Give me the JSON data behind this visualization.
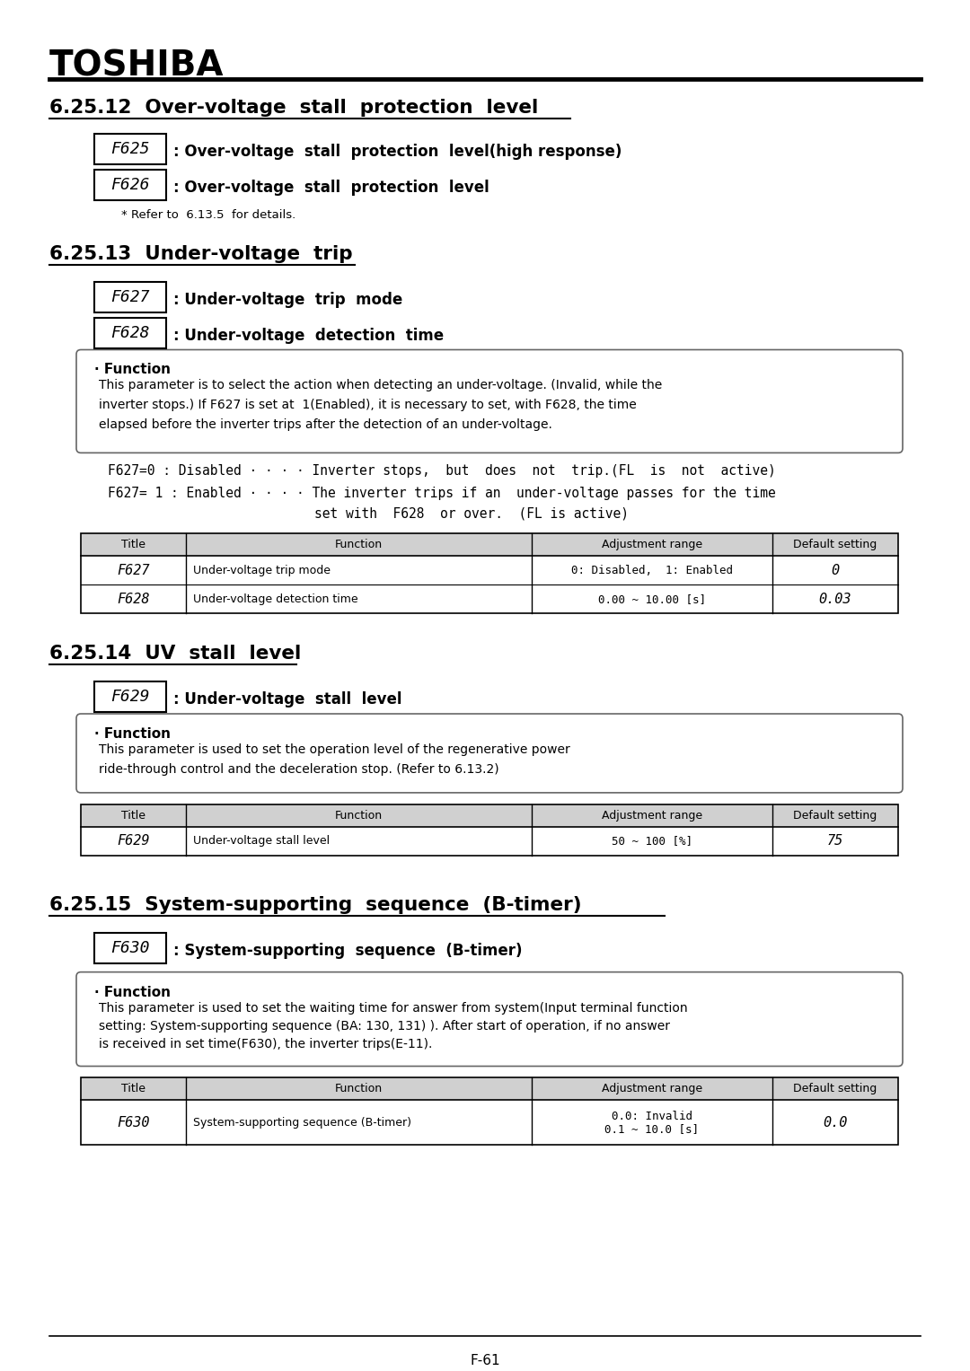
{
  "bg_color": "#ffffff",
  "text_color": "#000000",
  "page_number": "F-61",
  "toshiba_title": "TOSHIBA",
  "sections": [
    {
      "number": "6.25.12",
      "title": "Over-voltage  stall  protection  level",
      "params": [
        {
          "code": "F625",
          "desc": ": Over-voltage  stall  protection  level(high response)"
        },
        {
          "code": "F626",
          "desc": ": Over-voltage  stall  protection  level"
        }
      ],
      "note": "* Refer to 6.13.5  for details.",
      "function_box": null,
      "desc_lines": [],
      "table": null
    },
    {
      "number": "6.25.13",
      "title": "Under-voltage  trip",
      "params": [
        {
          "code": "F627",
          "desc": ": Under-voltage  trip  mode"
        },
        {
          "code": "F628",
          "desc": ": Under-voltage  detection  time"
        }
      ],
      "note": null,
      "function_box": {
        "title": "· Function",
        "lines": [
          "This parameter is to select the action when detecting an under-voltage. (Invalid, while the",
          "inverter stops.) If F627 is set at  1(Enabled), it is necessary to set, with F628, the time",
          "elapsed before the inverter trips after the detection of an under-voltage."
        ]
      },
      "desc_lines": [
        "F627=0 : Disabled · · · · Inverter stops,  but  does  not  trip.(FL  is  not  active)",
        "F627= 1 : Enabled · · · · The inverter trips if an  under-voltage passes for the time",
        "                         set with  F628  or over.  (FL is active)"
      ],
      "table": {
        "headers": [
          "Title",
          "Function",
          "Adjustment range",
          "Default setting"
        ],
        "rows": [
          [
            "F627",
            "Under-voltage trip mode",
            "0: Disabled,  1: Enabled",
            "0"
          ],
          [
            "F628",
            "Under-voltage detection time",
            "0.00 ~ 10.00 [s]",
            "0.03"
          ]
        ]
      }
    },
    {
      "number": "6.25.14",
      "title": "UV  stall  level",
      "params": [
        {
          "code": "F629",
          "desc": ": Under-voltage  stall  level"
        }
      ],
      "note": null,
      "function_box": {
        "title": "· Function",
        "lines": [
          "This parameter is used to set the operation level of the regenerative power",
          "ride-through control and the deceleration stop. (Refer to 6.13.2)"
        ]
      },
      "desc_lines": [],
      "table": {
        "headers": [
          "Title",
          "Function",
          "Adjustment range",
          "Default setting"
        ],
        "rows": [
          [
            "F629",
            "Under-voltage stall level",
            "50 ~ 100 [%]",
            "75"
          ]
        ]
      }
    },
    {
      "number": "6.25.15",
      "title": "System-supporting  sequence  (B-timer)",
      "params": [
        {
          "code": "F630",
          "desc": ": System-supporting  sequence  (B-timer)"
        }
      ],
      "note": null,
      "function_box": {
        "title": "· Function",
        "lines": [
          "This parameter is used to set the waiting time for answer from system(Input terminal function",
          "setting: System-supporting sequence (BA: 130, 131) ). After start of operation, if no answer",
          "is received in set time(F630), the inverter trips(E-11)."
        ]
      },
      "desc_lines": [],
      "table": {
        "headers": [
          "Title",
          "Function",
          "Adjustment range",
          "Default setting"
        ],
        "rows": [
          [
            "F630",
            "System-supporting sequence (B-timer)",
            "0.0: Invalid\n0.1 ~ 10.0 [s]",
            "0.0"
          ]
        ]
      }
    }
  ]
}
